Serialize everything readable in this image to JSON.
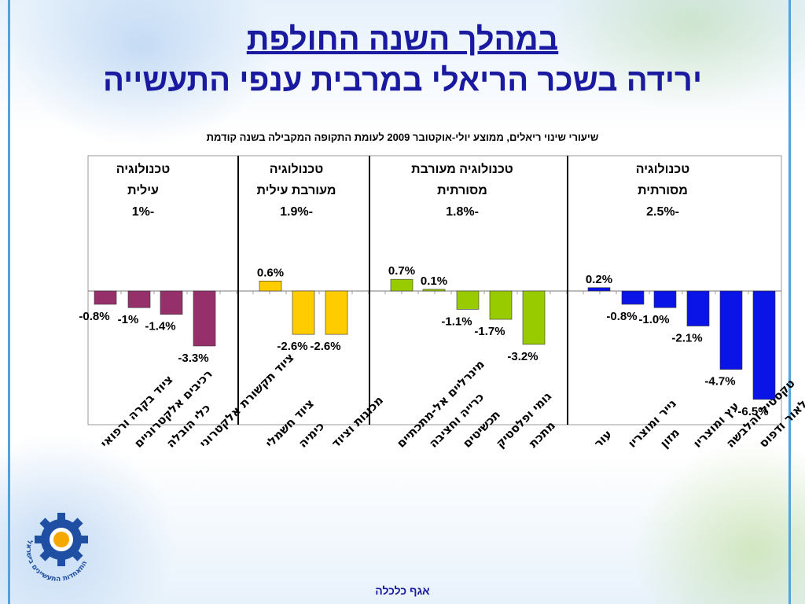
{
  "slide": {
    "title_line1": "במהלך השנה החולפת",
    "title_line2": "ירידה בשכר הריאלי במרבית ענפי התעשייה",
    "footer": "אגף כלכלה",
    "logo_text": "התאחדות התעשיינים בישראל"
  },
  "colors": {
    "title": "#1a1aa0",
    "frame": "#4fa3e0"
  },
  "chart_data": {
    "type": "bar",
    "title": "שיעורי שינוי ריאלים, ממוצע יולי-אוקטובר 2009 לעומת התקופה המקבילה בשנה קודמת",
    "ylim": [
      -7,
      2.5
    ],
    "grid": false,
    "groups": [
      {
        "name_lines": [
          "טכנולוגיה",
          "עילית",
          "-1%"
        ],
        "color": "#95306a",
        "categories": [
          "ציוד בקרה ורפואי",
          "רכיבים אלקטרוניים",
          "כלי הובלה",
          "ציוד תקשורת אלקטרוני"
        ],
        "values": [
          -0.8,
          -1.0,
          -1.4,
          -3.3
        ],
        "value_labels": [
          "-0.8%",
          "-1%",
          "-1.4%",
          "-3.3%"
        ]
      },
      {
        "name_lines": [
          "טכנולוגיה",
          "מעורבת עילית",
          "-1.9%"
        ],
        "color": "#ffcc00",
        "categories": [
          "ציוד חשמלי",
          "כימיה",
          "מכונות וציוד"
        ],
        "values": [
          0.6,
          -2.6,
          -2.6
        ],
        "value_labels": [
          "0.6%",
          "-2.6%",
          "-2.6%"
        ]
      },
      {
        "name_lines": [
          "טכנולוגיה מעורבת",
          "מסורתית",
          "-1.8%"
        ],
        "color": "#99cc00",
        "categories": [
          "מינרליים אל-מתכתיים",
          "כרייה וחציבה",
          "תכשיטים",
          "גומי ופלסטיק",
          "מתכת"
        ],
        "values": [
          0.7,
          0.1,
          -1.1,
          -1.7,
          -3.2
        ],
        "value_labels": [
          "0.7%",
          "0.1%",
          "-1.1%",
          "-1.7%",
          "-3.2%"
        ]
      },
      {
        "name_lines": [
          "טכנולוגיה",
          "מסורתית",
          "-2.5%"
        ],
        "color": "#0a14e6",
        "categories": [
          "עור",
          "נייר ומוצריו",
          "מזון",
          "עץ ומוצריו",
          "טקסטיל והלבשה",
          "הוצאה לאור ודפוס"
        ],
        "values": [
          0.2,
          -0.8,
          -1.0,
          -2.1,
          -4.7,
          -6.5
        ],
        "value_labels": [
          "0.2%",
          "-0.8%",
          "-1.0%",
          "-2.1%",
          "-4.7%",
          "-6.5%"
        ]
      }
    ]
  }
}
